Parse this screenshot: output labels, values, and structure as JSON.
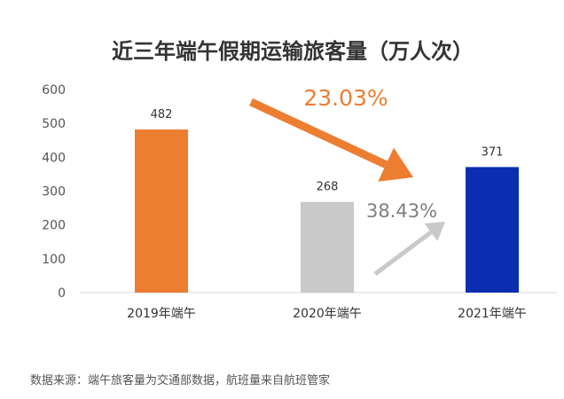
{
  "chart_data": {
    "type": "bar",
    "title": "近三年端午假期运输旅客量（万人次）",
    "categories": [
      "2019年端午",
      "2020年端午",
      "2021年端午"
    ],
    "values": [
      482,
      268,
      371
    ],
    "colors": [
      "#ED7D31",
      "#C9C9C9",
      "#0A2EAF"
    ],
    "ylim": [
      0,
      600
    ],
    "yticks": [
      0,
      100,
      200,
      300,
      400,
      500,
      600
    ],
    "grid": false,
    "annotations": [
      {
        "text": "23.03%",
        "from_category": "2019年端午",
        "to_category": "2021年端午",
        "color": "#ED7D31",
        "direction": "down"
      },
      {
        "text": "38.43%",
        "from_category": "2020年端午",
        "to_category": "2021年端午",
        "color": "#C9C9C9",
        "direction": "up"
      }
    ]
  },
  "source": "数据来源：端午旅客量为交通部数据，航班量来自航班管家"
}
